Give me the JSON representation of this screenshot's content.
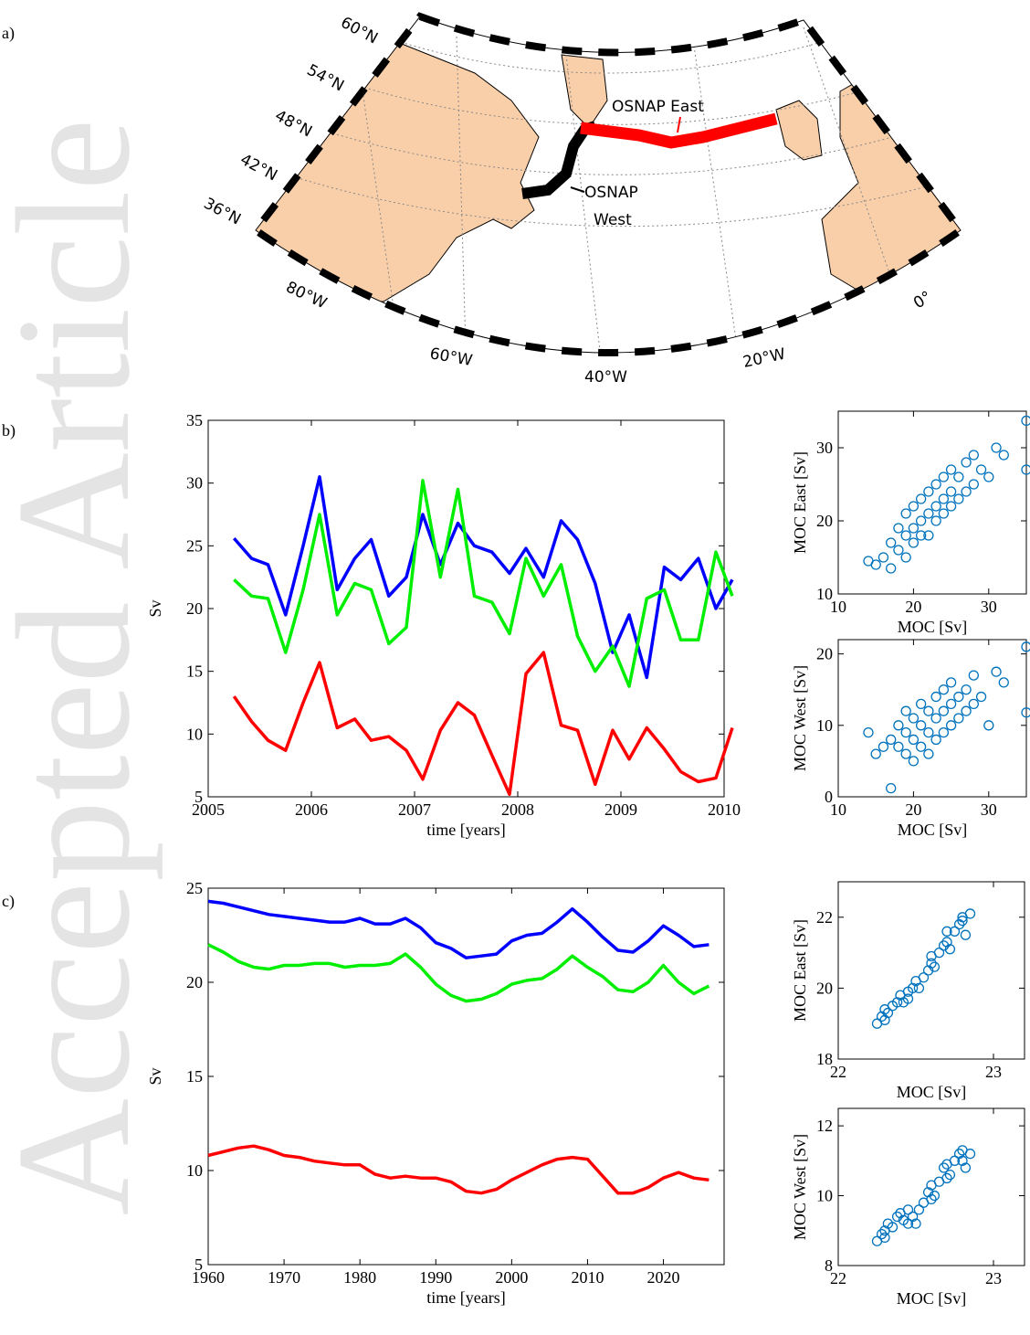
{
  "watermark": "Accepted Article",
  "panel_labels": [
    "a)",
    "b)",
    "c)"
  ],
  "map": {
    "lat_labels": [
      "60°N",
      "54°N",
      "48°N",
      "42°N",
      "36°N"
    ],
    "lon_labels": [
      "80°W",
      "60°W",
      "40°W",
      "20°W",
      "0°"
    ],
    "osnap_east": "OSNAP East",
    "osnap_west_lines": [
      "OSNAP",
      "West"
    ]
  },
  "chart_data": [
    {
      "type": "line",
      "xlabel": "time [years]",
      "ylabel": "Sv",
      "x": [
        2005.25,
        2005.42,
        2005.58,
        2005.75,
        2005.92,
        2006.08,
        2006.25,
        2006.42,
        2006.58,
        2006.75,
        2006.92,
        2007.08,
        2007.25,
        2007.42,
        2007.58,
        2007.75,
        2007.92,
        2008.08,
        2008.25,
        2008.42,
        2008.58,
        2008.75,
        2008.92,
        2009.08,
        2009.25,
        2009.42,
        2009.58,
        2009.75,
        2009.92,
        2010.08
      ],
      "series": [
        {
          "color": "#0000ff",
          "values": [
            25.6,
            24.0,
            23.5,
            19.5,
            25.0,
            30.5,
            21.5,
            24.0,
            25.5,
            21.0,
            22.5,
            27.5,
            23.5,
            26.8,
            25.0,
            24.5,
            22.8,
            24.8,
            22.5,
            27.0,
            25.5,
            22.0,
            16.5,
            19.5,
            14.5,
            23.3,
            22.3,
            24.0,
            20.0,
            22.3
          ]
        },
        {
          "color": "#00ee00",
          "values": [
            22.3,
            21.0,
            20.8,
            16.5,
            21.5,
            27.5,
            19.5,
            22.0,
            21.5,
            17.2,
            18.5,
            30.2,
            22.5,
            29.5,
            21.0,
            20.5,
            18.0,
            24.0,
            21.0,
            23.5,
            17.8,
            15.0,
            17.0,
            13.8,
            20.8,
            21.5,
            17.5,
            17.5,
            24.5,
            21.0
          ]
        },
        {
          "color": "#ff0000",
          "values": [
            13.0,
            11.0,
            9.5,
            8.7,
            12.5,
            15.7,
            10.5,
            11.2,
            9.5,
            9.8,
            8.7,
            6.4,
            10.3,
            12.5,
            11.5,
            8.3,
            5.2,
            14.8,
            16.5,
            10.7,
            10.3,
            6.0,
            10.3,
            8.0,
            10.5,
            8.8,
            7.0,
            6.2,
            6.5,
            10.5
          ]
        }
      ],
      "xlim": [
        2005,
        2010
      ],
      "xticks": [
        2005,
        2006,
        2007,
        2008,
        2009,
        2010
      ],
      "ylim": [
        5,
        35
      ],
      "yticks": [
        5,
        10,
        15,
        20,
        25,
        30,
        35
      ]
    },
    {
      "type": "scatter",
      "xlabel": "MOC [Sv]",
      "ylabel": "MOC East [Sv]",
      "color": "#0072bd",
      "x": [
        15,
        16,
        17,
        17,
        18,
        18,
        19,
        19,
        19,
        20,
        20,
        20,
        21,
        21,
        21,
        22,
        22,
        22,
        23,
        23,
        23,
        24,
        24,
        24,
        25,
        25,
        25,
        26,
        26,
        27,
        27,
        28,
        28,
        29,
        30,
        31,
        32,
        35,
        35,
        14
      ],
      "values": [
        14,
        15,
        17,
        13.5,
        16,
        19,
        15,
        18,
        21,
        17,
        19,
        22,
        18,
        20,
        23,
        18,
        21,
        24,
        20,
        22,
        25,
        21,
        23,
        26,
        22,
        24,
        27,
        23,
        26,
        24,
        28,
        25,
        29,
        27,
        26,
        30,
        29,
        33.7,
        27,
        14.5
      ],
      "xlim": [
        10,
        35
      ],
      "xticks": [
        10,
        20,
        30
      ],
      "ylim": [
        10,
        35
      ],
      "yticks": [
        10,
        20,
        30
      ]
    },
    {
      "type": "scatter",
      "xlabel": "MOC [Sv]",
      "ylabel": "MOC West [Sv]",
      "color": "#0072bd",
      "x": [
        15,
        16,
        17,
        17,
        18,
        18,
        19,
        19,
        19,
        20,
        20,
        20,
        21,
        21,
        21,
        22,
        22,
        22,
        23,
        23,
        23,
        24,
        24,
        24,
        25,
        25,
        25,
        26,
        26,
        27,
        27,
        28,
        28,
        29,
        30,
        31,
        32,
        35,
        35,
        14
      ],
      "values": [
        6,
        7,
        8,
        1.2,
        7,
        10,
        6,
        9,
        12,
        5,
        8,
        11,
        7,
        10,
        13,
        6,
        9,
        12,
        8,
        11,
        14,
        9,
        12,
        15,
        10,
        13,
        16,
        11,
        14,
        12,
        15,
        13,
        17,
        14,
        10,
        17.5,
        16,
        21,
        11.8,
        9
      ],
      "xlim": [
        10,
        35
      ],
      "xticks": [
        10,
        20,
        30
      ],
      "ylim": [
        0,
        22
      ],
      "yticks": [
        0,
        10,
        20
      ]
    },
    {
      "type": "line",
      "xlabel": "time [years]",
      "ylabel": "Sv",
      "x": [
        1960,
        1962,
        1964,
        1966,
        1968,
        1970,
        1972,
        1974,
        1976,
        1978,
        1980,
        1982,
        1984,
        1986,
        1988,
        1990,
        1992,
        1994,
        1996,
        1998,
        2000,
        2002,
        2004,
        2006,
        2008,
        2010,
        2012,
        2014,
        2016,
        2018,
        2020,
        2022,
        2024,
        2026
      ],
      "series": [
        {
          "color": "#0000ff",
          "values": [
            24.3,
            24.2,
            24.0,
            23.8,
            23.6,
            23.5,
            23.4,
            23.3,
            23.2,
            23.2,
            23.4,
            23.1,
            23.1,
            23.4,
            22.9,
            22.1,
            21.8,
            21.3,
            21.4,
            21.5,
            22.2,
            22.5,
            22.6,
            23.2,
            23.9,
            23.2,
            22.4,
            21.7,
            21.6,
            22.2,
            23.0,
            22.5,
            21.9,
            22.0
          ]
        },
        {
          "color": "#00ee00",
          "values": [
            22.0,
            21.6,
            21.1,
            20.8,
            20.7,
            20.9,
            20.9,
            21.0,
            21.0,
            20.8,
            20.9,
            20.9,
            21.0,
            21.5,
            20.8,
            19.9,
            19.3,
            19.0,
            19.1,
            19.4,
            19.9,
            20.1,
            20.2,
            20.7,
            21.4,
            20.8,
            20.3,
            19.6,
            19.5,
            20.0,
            20.9,
            20.0,
            19.4,
            19.8
          ]
        },
        {
          "color": "#ff0000",
          "values": [
            10.8,
            11.0,
            11.2,
            11.3,
            11.1,
            10.8,
            10.7,
            10.5,
            10.4,
            10.3,
            10.3,
            9.8,
            9.6,
            9.7,
            9.6,
            9.6,
            9.4,
            8.9,
            8.8,
            9.0,
            9.5,
            9.9,
            10.3,
            10.6,
            10.7,
            10.6,
            9.7,
            8.8,
            8.8,
            9.1,
            9.6,
            9.9,
            9.6,
            9.5
          ]
        }
      ],
      "xlim": [
        1960,
        2028
      ],
      "xticks": [
        1960,
        1970,
        1980,
        1990,
        2000,
        2010,
        2020
      ],
      "ylim": [
        5,
        25
      ],
      "yticks": [
        5,
        10,
        15,
        20,
        25
      ]
    },
    {
      "type": "scatter",
      "xlabel": "MOC [Sv]",
      "ylabel": "MOC East [Sv]",
      "color": "#0072bd",
      "x": [
        22.25,
        22.28,
        22.3,
        22.32,
        22.35,
        22.38,
        22.4,
        22.42,
        22.45,
        22.48,
        22.5,
        22.52,
        22.55,
        22.58,
        22.6,
        22.62,
        22.65,
        22.68,
        22.7,
        22.72,
        22.75,
        22.78,
        22.8,
        22.82,
        22.85,
        22.3,
        22.45,
        22.6,
        22.7,
        22.8
      ],
      "values": [
        19.0,
        19.2,
        19.4,
        19.3,
        19.5,
        19.6,
        19.8,
        19.6,
        19.9,
        20.0,
        20.2,
        20.0,
        20.3,
        20.5,
        20.7,
        20.6,
        21.0,
        21.2,
        21.3,
        21.1,
        21.6,
        21.8,
        21.9,
        21.5,
        22.1,
        19.1,
        19.7,
        20.9,
        21.6,
        22.0
      ],
      "xlim": [
        22,
        23.2
      ],
      "xticks": [
        22,
        23
      ],
      "ylim": [
        18,
        23
      ],
      "yticks": [
        18,
        20,
        22
      ]
    },
    {
      "type": "scatter",
      "xlabel": "MOC [Sv]",
      "ylabel": "MOC West [Sv]",
      "color": "#0072bd",
      "x": [
        22.25,
        22.28,
        22.3,
        22.32,
        22.35,
        22.38,
        22.4,
        22.42,
        22.45,
        22.48,
        22.5,
        22.52,
        22.55,
        22.58,
        22.6,
        22.62,
        22.65,
        22.68,
        22.7,
        22.72,
        22.75,
        22.78,
        22.8,
        22.82,
        22.85,
        22.3,
        22.45,
        22.6,
        22.7,
        22.8
      ],
      "values": [
        8.7,
        8.9,
        9.0,
        9.2,
        9.1,
        9.4,
        9.5,
        9.3,
        9.6,
        9.4,
        9.2,
        9.6,
        9.8,
        10.1,
        10.3,
        10.0,
        10.4,
        10.8,
        10.9,
        10.6,
        11.0,
        11.2,
        11.3,
        10.8,
        11.2,
        8.8,
        9.2,
        9.9,
        10.5,
        11.0
      ],
      "xlim": [
        22,
        23.2
      ],
      "xticks": [
        22,
        23
      ],
      "ylim": [
        8,
        12.5
      ],
      "yticks": [
        8,
        10,
        12
      ]
    }
  ]
}
